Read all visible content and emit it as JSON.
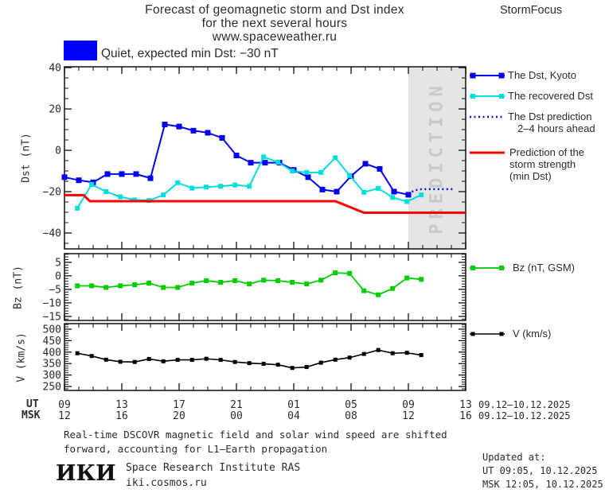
{
  "header": {
    "title_line1": "Forecast of geomagnetic storm and Dst index",
    "title_line2": "for the next several hours",
    "title_line3": "www.spaceweather.ru",
    "brand": "StormFocus"
  },
  "status": {
    "label": "Quiet, expected min Dst: −30 nT",
    "box_color": "#0000ff"
  },
  "colors": {
    "dst_kyoto": "#0000ee",
    "recovered": "#00dddd",
    "prediction": "#1111dd",
    "storm": "#ff0000",
    "bz": "#00cc00",
    "v": "#000000",
    "band_bg": "#e4e4e4",
    "band_text": "#c9c9c9",
    "tick": "#111111",
    "text": "#2b2b2b"
  },
  "legend": {
    "kyoto": "The Dst, Kyoto",
    "recovered": "The recovered Dst",
    "prediction_line1": "The Dst prediction",
    "prediction_line2": "2–4 hours ahead",
    "storm_line1": "Prediction of the",
    "storm_line2": "storm strength",
    "storm_line3": "(min Dst)",
    "bz": "Bz (nT, GSM)",
    "v": "V (km/s)"
  },
  "axes": {
    "dst_label": "Dst (nT)",
    "bz_label": "Bz (nT)",
    "v_label": "V (km/s)",
    "ut_row_label": "UT",
    "msk_row_label": "MSK",
    "ut_ticks": [
      "09",
      "13",
      "17",
      "21",
      "01",
      "05",
      "09",
      "13"
    ],
    "msk_ticks": [
      "12",
      "16",
      "20",
      "00",
      "04",
      "08",
      "12",
      "16"
    ],
    "tick_hours": [
      0,
      4,
      8,
      12,
      16,
      20,
      24,
      28
    ],
    "date_range_ut": "09.12–10.12.2025",
    "date_range_msk": "09.12–10.12.2025"
  },
  "footer": {
    "note_line1": "Real-time DSCOVR magnetic field and solar wind speed are shifted",
    "note_line2": "forward, accounting for L1–Earth propagation",
    "logo": "ИКИ",
    "institute": "Space Research Institute RAS",
    "site": "iki.cosmos.ru",
    "updated_title": "Updated at:",
    "updated_ut": "UT  09:05, 10.12.2025",
    "updated_msk": "MSK 12:05, 10.12.2025"
  },
  "chart_data": [
    {
      "type": "line",
      "panel": "dst",
      "title": "Forecast of geomagnetic storm and Dst index",
      "ylabel": "Dst (nT)",
      "ylim": [
        -47.7,
        40.4
      ],
      "yticks": [
        40,
        20,
        0,
        -20,
        -40
      ],
      "yminor_step": 5,
      "x_axis": "hours from 09 UT 09.12.2025, ticks every 4 h",
      "prediction_band": {
        "from_hour": 24,
        "to_hour": 28,
        "label": "PREDICTION"
      },
      "series": [
        {
          "name": "The Dst, Kyoto",
          "color": "#0000ee",
          "marker": "square",
          "marker_size": 7,
          "width": 2,
          "x0": 0,
          "dx": 1,
          "values": [
            -13,
            -14.5,
            -15.5,
            -11.5,
            -11.5,
            -11.5,
            -13.5,
            12.5,
            11.5,
            9.5,
            8.5,
            6,
            -2.5,
            -6,
            -6,
            -6,
            -9.5,
            -13,
            -19,
            -20,
            -12.5,
            -6.5,
            -9,
            -20,
            -21.5
          ]
        },
        {
          "name": "The recovered Dst",
          "color": "#00dddd",
          "marker": "square",
          "marker_size": 6,
          "width": 2,
          "x0": 0.9,
          "dx": 1,
          "values": [
            -28,
            -16.5,
            -20,
            -22.5,
            -24,
            -24.3,
            -21.6,
            -15.7,
            -18.3,
            -17.8,
            -17.4,
            -16.8,
            -17.4,
            -3.2,
            -5.8,
            -10,
            -10.7,
            -10.7,
            -3.6,
            -12.2,
            -20.3,
            -18.4,
            -22.8,
            -24.8,
            -21.6
          ]
        },
        {
          "name": "The Dst prediction 2–4 hours ahead",
          "color": "#1111dd",
          "style": "dotted",
          "width": 2.5,
          "points": [
            [
              24.0,
              -21.3
            ],
            [
              24.4,
              -19.4
            ],
            [
              24.9,
              -18.8
            ],
            [
              27.2,
              -18.8
            ]
          ]
        },
        {
          "name": "Prediction of the storm strength (min Dst)",
          "color": "#ff0000",
          "style": "solid",
          "width": 3,
          "points": [
            [
              0,
              -21.7
            ],
            [
              1.33,
              -21.7
            ],
            [
              1.78,
              -24.6
            ],
            [
              18.9,
              -24.6
            ],
            [
              20.9,
              -30.2
            ],
            [
              28,
              -30.2
            ]
          ]
        }
      ]
    },
    {
      "type": "line",
      "panel": "bz",
      "ylabel": "Bz (nT)",
      "ylim": [
        -16.5,
        8.2
      ],
      "yticks": [
        5,
        0,
        -5,
        -10,
        -15
      ],
      "yminor_step": 1,
      "series": [
        {
          "name": "Bz (nT, GSM)",
          "color": "#00cc00",
          "marker": "square",
          "marker_size": 6,
          "width": 1.8,
          "x0": 0.9,
          "dx": 1,
          "values": [
            -3.7,
            -3.7,
            -4.3,
            -3.7,
            -3.3,
            -2.7,
            -4.3,
            -4.3,
            -2.7,
            -1.8,
            -2.4,
            -1.8,
            -3.0,
            -1.6,
            -1.8,
            -2.4,
            -3.0,
            -1.6,
            1.1,
            0.9,
            -5.5,
            -7.0,
            -4.7,
            -0.8,
            -1.3
          ]
        }
      ]
    },
    {
      "type": "line",
      "panel": "v",
      "ylabel": "V (km/s)",
      "ylim": [
        233,
        524
      ],
      "yticks": [
        500,
        450,
        400,
        350,
        300,
        250
      ],
      "yminor_step": 10,
      "series": [
        {
          "name": "V (km/s)",
          "color": "#000000",
          "marker": "square",
          "marker_size": 5,
          "width": 1.6,
          "x0": 0.9,
          "dx": 1,
          "values": [
            395,
            383,
            367,
            358,
            357,
            370,
            360,
            366,
            366,
            371,
            366,
            357,
            352,
            349,
            345,
            331,
            335,
            354,
            367,
            376,
            392,
            409,
            395,
            397,
            387
          ]
        }
      ]
    }
  ]
}
